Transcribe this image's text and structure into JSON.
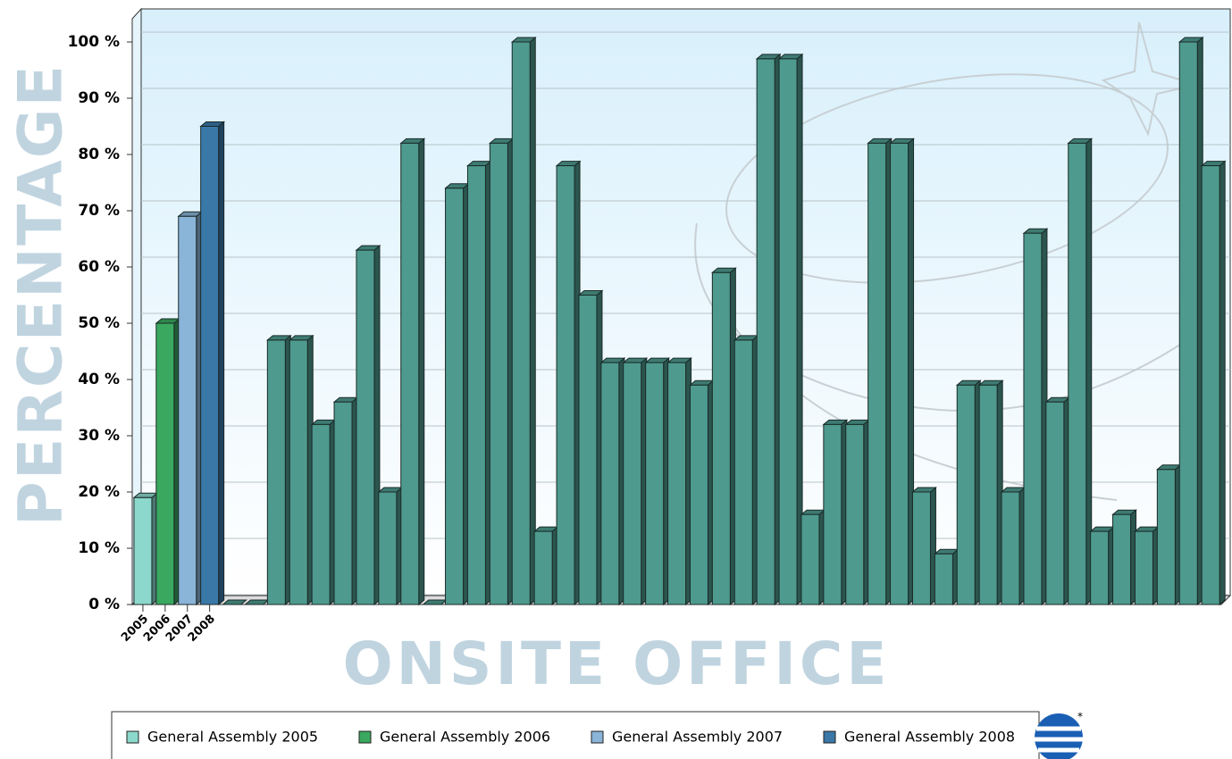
{
  "chart_data": {
    "type": "bar3d",
    "ylabel": "PERCENTAGE",
    "xlabel": "ONSITE OFFICE",
    "categories": [
      "2005",
      "2006",
      "2007",
      "2008",
      null,
      null,
      null,
      null,
      null,
      null,
      null,
      null,
      null,
      null,
      null,
      null,
      null,
      null,
      null,
      null,
      null,
      null,
      null,
      null,
      null,
      null,
      null,
      null,
      null,
      null,
      null,
      null,
      null,
      null,
      null,
      null,
      null,
      null,
      null,
      null,
      null,
      null,
      null,
      null,
      null,
      null,
      null,
      null,
      null
    ],
    "series": [
      {
        "name": "General Assembly 2005",
        "color": "#8cd8cc",
        "values": [
          19,
          null,
          null,
          null,
          null,
          null,
          null,
          null,
          null,
          null,
          null,
          null,
          null,
          null,
          null,
          null,
          null,
          null,
          null,
          null,
          null,
          null,
          null,
          null,
          null,
          null,
          null,
          null,
          null,
          null,
          null,
          null,
          null,
          null,
          null,
          null,
          null,
          null,
          null,
          null,
          null,
          null,
          null,
          null,
          null,
          null,
          null,
          null,
          null
        ]
      },
      {
        "name": "General Assembly 2006",
        "color": "#3aa85e",
        "values": [
          null,
          50,
          null,
          null,
          null,
          null,
          null,
          null,
          null,
          null,
          null,
          null,
          null,
          null,
          null,
          null,
          null,
          null,
          null,
          null,
          null,
          null,
          null,
          null,
          null,
          null,
          null,
          null,
          null,
          null,
          null,
          null,
          null,
          null,
          null,
          null,
          null,
          null,
          null,
          null,
          null,
          null,
          null,
          null,
          null,
          null,
          null,
          null,
          null
        ]
      },
      {
        "name": "General Assembly 2007",
        "color": "#8ab4d8",
        "values": [
          null,
          null,
          69,
          null,
          null,
          null,
          null,
          null,
          null,
          null,
          null,
          null,
          null,
          null,
          null,
          null,
          null,
          null,
          null,
          null,
          null,
          null,
          null,
          null,
          null,
          null,
          null,
          null,
          null,
          null,
          null,
          null,
          null,
          null,
          null,
          null,
          null,
          null,
          null,
          null,
          null,
          null,
          null,
          null,
          null,
          null,
          null,
          null,
          null
        ]
      },
      {
        "name": "General Assembly 2008",
        "color": "#3a78a8",
        "values": [
          null,
          null,
          null,
          85,
          null,
          null,
          null,
          null,
          null,
          null,
          null,
          null,
          null,
          null,
          null,
          null,
          null,
          null,
          null,
          null,
          null,
          null,
          null,
          null,
          null,
          null,
          null,
          null,
          null,
          null,
          null,
          null,
          null,
          null,
          null,
          null,
          null,
          null,
          null,
          null,
          null,
          null,
          null,
          null,
          null,
          null,
          null,
          null,
          null
        ]
      },
      {
        "color": "#4e9a8e",
        "values": [
          null,
          null,
          null,
          null,
          0,
          0,
          47,
          47,
          32,
          36,
          63,
          20,
          82,
          0,
          74,
          78,
          82,
          100,
          13,
          78,
          55,
          43,
          43,
          43,
          43,
          39,
          59,
          47,
          97,
          97,
          16,
          32,
          32,
          82,
          82,
          20,
          9,
          39,
          39,
          20,
          66,
          36,
          82,
          13,
          16,
          13,
          24,
          100,
          78
        ]
      }
    ],
    "ylim": [
      0,
      100
    ],
    "yticks": [
      {
        "value": 0,
        "label": "0 %"
      },
      {
        "value": 10,
        "label": "10 %"
      },
      {
        "value": 20,
        "label": "20 %"
      },
      {
        "value": 30,
        "label": "30 %"
      },
      {
        "value": 40,
        "label": "40 %"
      },
      {
        "value": 50,
        "label": "50 %"
      },
      {
        "value": 60,
        "label": "60 %"
      },
      {
        "value": 70,
        "label": "70 %"
      },
      {
        "value": 80,
        "label": "80 %"
      },
      {
        "value": 90,
        "label": "90 %"
      },
      {
        "value": 100,
        "label": "100 %"
      }
    ],
    "grid": true
  }
}
